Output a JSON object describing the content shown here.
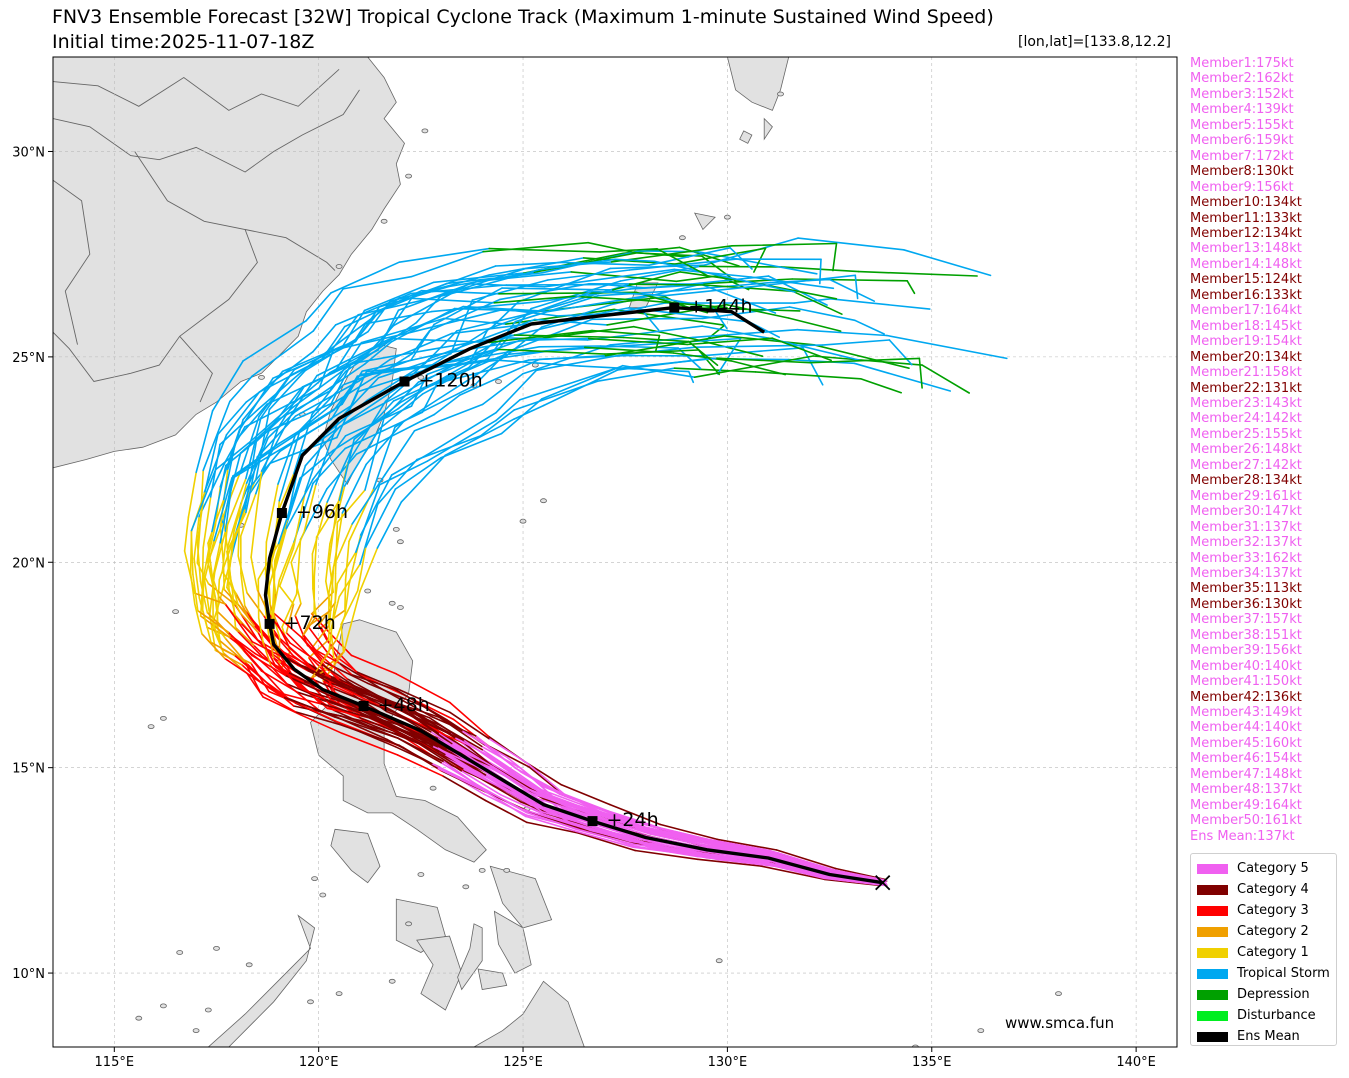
{
  "header": {
    "title": "FNV3 Ensemble Forecast [32W] Tropical Cyclone Track (Maximum 1-minute Sustained Wind Speed)",
    "initial_time": "Initial time:2025-11-07-18Z",
    "position": "[lon,lat]=[133.8,12.2]"
  },
  "watermark": "www.smca.fun",
  "colors": {
    "cat5": "#f060f0",
    "cat4": "#800000",
    "cat3": "#ff0000",
    "cat2": "#f0a000",
    "cat1": "#f0d000",
    "ts": "#00a8f0",
    "depression": "#00a000",
    "disturbance": "#00ee20",
    "mean": "#000000",
    "land": "#e1e1e1",
    "coast": "#666666"
  },
  "map": {
    "lon_ticks": [
      "115°E",
      "120°E",
      "125°E",
      "130°E",
      "135°E",
      "140°E"
    ],
    "lat_ticks": [
      "10°N",
      "15°N",
      "20°N",
      "25°N",
      "30°N"
    ],
    "lon_range": [
      113.5,
      141.0
    ],
    "lat_range": [
      8.2,
      32.3
    ]
  },
  "mean_track": {
    "label_points": [
      {
        "label": "+24h",
        "lon": 126.7,
        "lat": 13.7
      },
      {
        "label": "+48h",
        "lon": 121.1,
        "lat": 16.5
      },
      {
        "label": "+72h",
        "lon": 118.8,
        "lat": 18.5
      },
      {
        "label": "+96h",
        "lon": 119.1,
        "lat": 21.2
      },
      {
        "label": "+120h",
        "lon": 122.1,
        "lat": 24.4
      },
      {
        "label": "+144h",
        "lon": 128.7,
        "lat": 26.2
      }
    ],
    "points": [
      [
        133.8,
        12.2
      ],
      [
        132.5,
        12.4
      ],
      [
        131.0,
        12.8
      ],
      [
        129.5,
        13.0
      ],
      [
        128.0,
        13.3
      ],
      [
        126.7,
        13.7
      ],
      [
        125.5,
        14.1
      ],
      [
        124.5,
        14.7
      ],
      [
        123.5,
        15.3
      ],
      [
        122.5,
        15.9
      ],
      [
        121.1,
        16.5
      ],
      [
        120.1,
        16.9
      ],
      [
        119.4,
        17.4
      ],
      [
        118.9,
        18.0
      ],
      [
        118.8,
        18.5
      ],
      [
        118.7,
        19.2
      ],
      [
        118.8,
        20.1
      ],
      [
        119.1,
        21.2
      ],
      [
        119.6,
        22.6
      ],
      [
        120.5,
        23.5
      ],
      [
        122.1,
        24.4
      ],
      [
        123.7,
        25.2
      ],
      [
        125.2,
        25.8
      ],
      [
        126.9,
        26.0
      ],
      [
        128.7,
        26.2
      ],
      [
        130.1,
        26.1
      ],
      [
        130.9,
        25.6
      ]
    ]
  },
  "members": [
    {
      "label": "Member1:175kt",
      "cat": "cat5"
    },
    {
      "label": "Member2:162kt",
      "cat": "cat5"
    },
    {
      "label": "Member3:152kt",
      "cat": "cat5"
    },
    {
      "label": "Member4:139kt",
      "cat": "cat5"
    },
    {
      "label": "Member5:155kt",
      "cat": "cat5"
    },
    {
      "label": "Member6:159kt",
      "cat": "cat5"
    },
    {
      "label": "Member7:172kt",
      "cat": "cat5"
    },
    {
      "label": "Member8:130kt",
      "cat": "cat4"
    },
    {
      "label": "Member9:156kt",
      "cat": "cat5"
    },
    {
      "label": "Member10:134kt",
      "cat": "cat4"
    },
    {
      "label": "Member11:133kt",
      "cat": "cat4"
    },
    {
      "label": "Member12:134kt",
      "cat": "cat4"
    },
    {
      "label": "Member13:148kt",
      "cat": "cat5"
    },
    {
      "label": "Member14:148kt",
      "cat": "cat5"
    },
    {
      "label": "Member15:124kt",
      "cat": "cat4"
    },
    {
      "label": "Member16:133kt",
      "cat": "cat4"
    },
    {
      "label": "Member17:164kt",
      "cat": "cat5"
    },
    {
      "label": "Member18:145kt",
      "cat": "cat5"
    },
    {
      "label": "Member19:154kt",
      "cat": "cat5"
    },
    {
      "label": "Member20:134kt",
      "cat": "cat4"
    },
    {
      "label": "Member21:158kt",
      "cat": "cat5"
    },
    {
      "label": "Member22:131kt",
      "cat": "cat4"
    },
    {
      "label": "Member23:143kt",
      "cat": "cat5"
    },
    {
      "label": "Member24:142kt",
      "cat": "cat5"
    },
    {
      "label": "Member25:155kt",
      "cat": "cat5"
    },
    {
      "label": "Member26:148kt",
      "cat": "cat5"
    },
    {
      "label": "Member27:142kt",
      "cat": "cat5"
    },
    {
      "label": "Member28:134kt",
      "cat": "cat4"
    },
    {
      "label": "Member29:161kt",
      "cat": "cat5"
    },
    {
      "label": "Member30:147kt",
      "cat": "cat5"
    },
    {
      "label": "Member31:137kt",
      "cat": "cat5"
    },
    {
      "label": "Member32:137kt",
      "cat": "cat5"
    },
    {
      "label": "Member33:162kt",
      "cat": "cat5"
    },
    {
      "label": "Member34:137kt",
      "cat": "cat5"
    },
    {
      "label": "Member35:113kt",
      "cat": "cat4"
    },
    {
      "label": "Member36:130kt",
      "cat": "cat4"
    },
    {
      "label": "Member37:157kt",
      "cat": "cat5"
    },
    {
      "label": "Member38:151kt",
      "cat": "cat5"
    },
    {
      "label": "Member39:156kt",
      "cat": "cat5"
    },
    {
      "label": "Member40:140kt",
      "cat": "cat5"
    },
    {
      "label": "Member41:150kt",
      "cat": "cat5"
    },
    {
      "label": "Member42:136kt",
      "cat": "cat4"
    },
    {
      "label": "Member43:149kt",
      "cat": "cat5"
    },
    {
      "label": "Member44:140kt",
      "cat": "cat5"
    },
    {
      "label": "Member45:160kt",
      "cat": "cat5"
    },
    {
      "label": "Member46:154kt",
      "cat": "cat5"
    },
    {
      "label": "Member47:148kt",
      "cat": "cat5"
    },
    {
      "label": "Member48:137kt",
      "cat": "cat5"
    },
    {
      "label": "Member49:164kt",
      "cat": "cat5"
    },
    {
      "label": "Member50:161kt",
      "cat": "cat5"
    },
    {
      "label": "Ens Mean:137kt",
      "cat": "cat5"
    }
  ],
  "legend": [
    {
      "label": "Category 5",
      "color": "#f060f0"
    },
    {
      "label": "Category 4",
      "color": "#800000"
    },
    {
      "label": "Category 3",
      "color": "#ff0000"
    },
    {
      "label": "Category 2",
      "color": "#f0a000"
    },
    {
      "label": "Category 1",
      "color": "#f0d000"
    },
    {
      "label": "Tropical Storm",
      "color": "#00a8f0"
    },
    {
      "label": "Depression",
      "color": "#00a000"
    },
    {
      "label": "Disturbance",
      "color": "#00ee20"
    },
    {
      "label": "Ens Mean",
      "color": "#000000"
    }
  ]
}
